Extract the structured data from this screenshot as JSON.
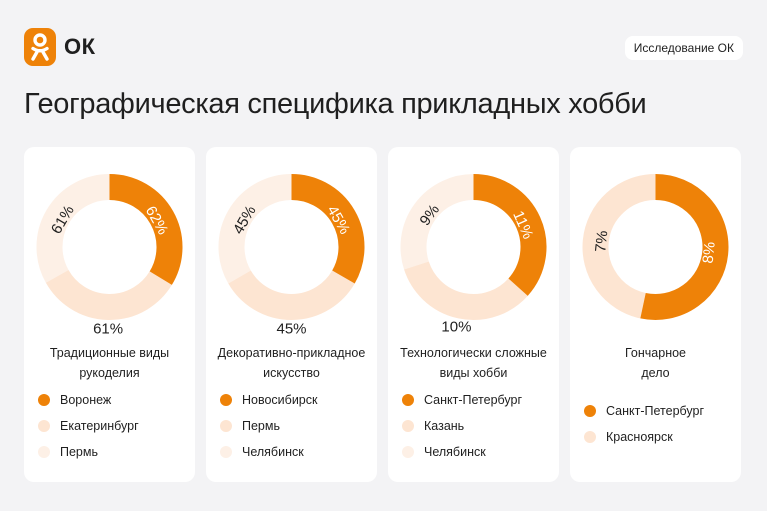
{
  "header": {
    "logo_text": "ОК",
    "logo_icon": "ok-logo-icon",
    "badge": "Исследование ОК",
    "title": "Географическая специфика прикладных хобби"
  },
  "colors": {
    "accent": "#ee8208",
    "mid": "#fde5d2",
    "light": "#fdf0e6",
    "text": "#1f1f1f"
  },
  "chart_data": [
    {
      "type": "pie",
      "category": "Традиционные виды рукоделия",
      "label_lines": [
        "Традиционные виды",
        "рукоделия"
      ],
      "series": [
        {
          "name": "Воронеж",
          "value_label": "62%",
          "value": 62
        },
        {
          "name": "Екатеринбург",
          "value_label": "61%",
          "value": 61
        },
        {
          "name": "Пермь",
          "value_label": "61%",
          "value": 61
        }
      ]
    },
    {
      "type": "pie",
      "category": "Декоративно-прикладное искусство",
      "label_lines": [
        "Декоративно-прикладное",
        "искусство"
      ],
      "series": [
        {
          "name": "Новосибирск",
          "value_label": "45%",
          "value": 45
        },
        {
          "name": "Пермь",
          "value_label": "45%",
          "value": 45
        },
        {
          "name": "Челябинск",
          "value_label": "45%",
          "value": 45
        }
      ]
    },
    {
      "type": "pie",
      "category": "Технологически сложные виды хобби",
      "label_lines": [
        "Технологически сложные",
        "виды хобби"
      ],
      "series": [
        {
          "name": "Санкт-Петербург",
          "value_label": "11%",
          "value": 11
        },
        {
          "name": "Казань",
          "value_label": "10%",
          "value": 10
        },
        {
          "name": "Челябинск",
          "value_label": "9%",
          "value": 9
        }
      ]
    },
    {
      "type": "pie",
      "category": "Гончарное дело",
      "label_lines": [
        "Гончарное",
        "дело"
      ],
      "series": [
        {
          "name": "Санкт-Петербург",
          "value_label": "8%",
          "value": 8
        },
        {
          "name": "Красноярск",
          "value_label": "7%",
          "value": 7
        }
      ]
    }
  ]
}
